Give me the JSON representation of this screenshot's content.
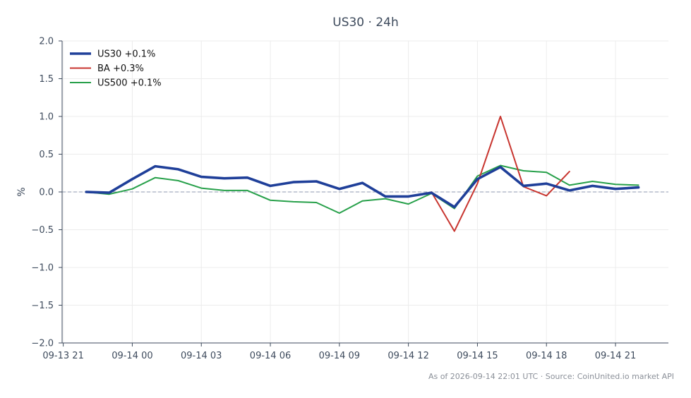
{
  "chart_data": {
    "type": "line",
    "title": "US30 · 24h",
    "ylabel": "%",
    "xlabel": "",
    "ylim": [
      -2.0,
      2.0
    ],
    "yticks": [
      -2.0,
      -1.5,
      -1.0,
      -0.5,
      0.0,
      0.5,
      1.0,
      1.5,
      2.0
    ],
    "ytick_labels": [
      "−2.0",
      "−1.5",
      "−1.0",
      "−0.5",
      "0.0",
      "0.5",
      "1.0",
      "1.5",
      "2.0"
    ],
    "xlim": [
      -0.05,
      26.3
    ],
    "xticks": [
      0,
      3,
      6,
      9,
      12,
      15,
      18,
      21,
      24
    ],
    "xtick_labels": [
      "09-13 21",
      "09-14 00",
      "09-14 03",
      "09-14 06",
      "09-14 09",
      "09-14 12",
      "09-14 15",
      "09-14 18",
      "09-14 21"
    ],
    "x_unit": "hours from 09-13 21",
    "grid": true,
    "baseline": 0.0,
    "legend_position": "top-left",
    "series": [
      {
        "name": "US30 +0.1%",
        "color": "#1f3f99",
        "x": [
          1,
          2,
          3,
          4,
          5,
          6,
          7,
          8,
          9,
          10,
          11,
          12,
          13,
          14,
          15,
          16,
          17,
          18,
          19,
          20,
          21,
          22,
          23,
          24,
          25
        ],
        "y": [
          0.0,
          -0.01,
          0.17,
          0.34,
          0.3,
          0.2,
          0.18,
          0.19,
          0.08,
          0.13,
          0.14,
          0.04,
          0.12,
          -0.06,
          -0.06,
          -0.01,
          -0.2,
          0.17,
          0.33,
          0.08,
          0.11,
          0.02,
          0.08,
          0.04,
          0.06
        ]
      },
      {
        "name": "BA +0.3%",
        "color": "#c8352f",
        "x": [
          16,
          17,
          18,
          19,
          20,
          21,
          22
        ],
        "y": [
          0.0,
          -0.52,
          0.11,
          1.0,
          0.07,
          -0.05,
          0.27
        ]
      },
      {
        "name": "US500 +0.1%",
        "color": "#27a04a",
        "x": [
          1,
          2,
          3,
          4,
          5,
          6,
          7,
          8,
          9,
          10,
          11,
          12,
          13,
          14,
          15,
          16,
          17,
          18,
          19,
          20,
          21,
          22,
          23,
          24,
          25
        ],
        "y": [
          0.0,
          -0.03,
          0.04,
          0.19,
          0.15,
          0.05,
          0.02,
          0.02,
          -0.11,
          -0.13,
          -0.14,
          -0.28,
          -0.12,
          -0.09,
          -0.16,
          -0.02,
          -0.22,
          0.21,
          0.35,
          0.28,
          0.26,
          0.09,
          0.14,
          0.1,
          0.09
        ]
      }
    ]
  },
  "footer": {
    "text": "As of 2026-09-14 22:01 UTC · Source: CoinUnited.io market API"
  }
}
